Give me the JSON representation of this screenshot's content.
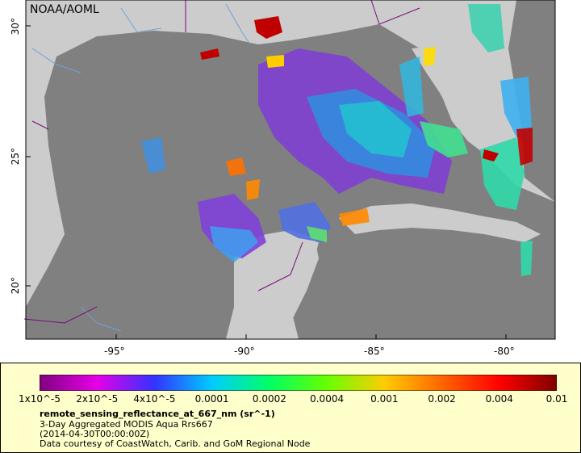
{
  "credit": "NOAA/AOML",
  "lat_ticks": [
    {
      "label": "30°",
      "lat": 30
    },
    {
      "label": "25°",
      "lat": 25
    },
    {
      "label": "20°",
      "lat": 20
    }
  ],
  "lon_ticks": [
    {
      "label": "-95°",
      "lon": -95
    },
    {
      "label": "-90°",
      "lon": -90
    },
    {
      "label": "-85°",
      "lon": -85
    },
    {
      "label": "-80°",
      "lon": -80
    }
  ],
  "colorbar": {
    "ticks": [
      "1x10^-5",
      "2x10^-5",
      "4x10^-5",
      "0.0001",
      "0.0002",
      "0.0004",
      "0.001",
      "0.002",
      "0.004",
      "0.01"
    ],
    "colors": [
      "#800080",
      "#e600e6",
      "#3333ff",
      "#00ccff",
      "#00ff66",
      "#66ff00",
      "#ffcc00",
      "#ff6600",
      "#ff0000",
      "#800000"
    ]
  },
  "legend": {
    "title": "remote_sensing_reflectance_at_667_nm (sr^-1)",
    "line1": "3-Day Aggregated MODIS Aqua Rrs667",
    "line2": "(2014-04-30T00:00:00Z)",
    "line3": "Data courtesy of CoastWatch, Carib. and GoM Regional Node"
  },
  "colors": {
    "land": "#cccccc",
    "water": "#808080",
    "legend_bg": "#ffffcc"
  }
}
